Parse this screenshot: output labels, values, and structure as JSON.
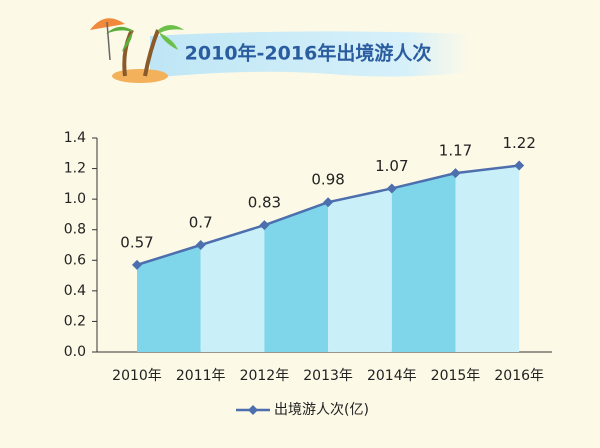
{
  "chart_data": {
    "type": "line",
    "title": "2010年-2016年出境游人次",
    "categories": [
      "2010年",
      "2011年",
      "2012年",
      "2013年",
      "2014年",
      "2015年",
      "2016年"
    ],
    "series": [
      {
        "name": "出境游人次(亿)",
        "color": "#4d6fae",
        "values": [
          0.57,
          0.7,
          0.83,
          0.98,
          1.07,
          1.17,
          1.22
        ]
      }
    ],
    "fill_colors": [
      "#7fd6ea",
      "#c9f0f8"
    ],
    "ylim": [
      0,
      1.4
    ],
    "yticks": [
      {
        "value": 0,
        "label": "0.0"
      },
      0.2,
      0.4,
      0.6,
      0.8,
      {
        "value": 1,
        "label": "1.0"
      },
      1.2,
      1.4
    ],
    "legend": "bottom"
  }
}
